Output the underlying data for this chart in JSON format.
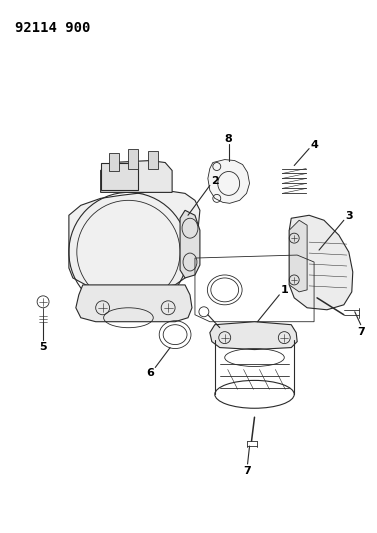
{
  "title": "92114 900",
  "bg_color": "#ffffff",
  "line_color": "#2a2a2a",
  "label_color": "#000000",
  "title_fontsize": 10,
  "label_fontsize": 8,
  "figsize": [
    3.77,
    5.33
  ],
  "dpi": 100
}
